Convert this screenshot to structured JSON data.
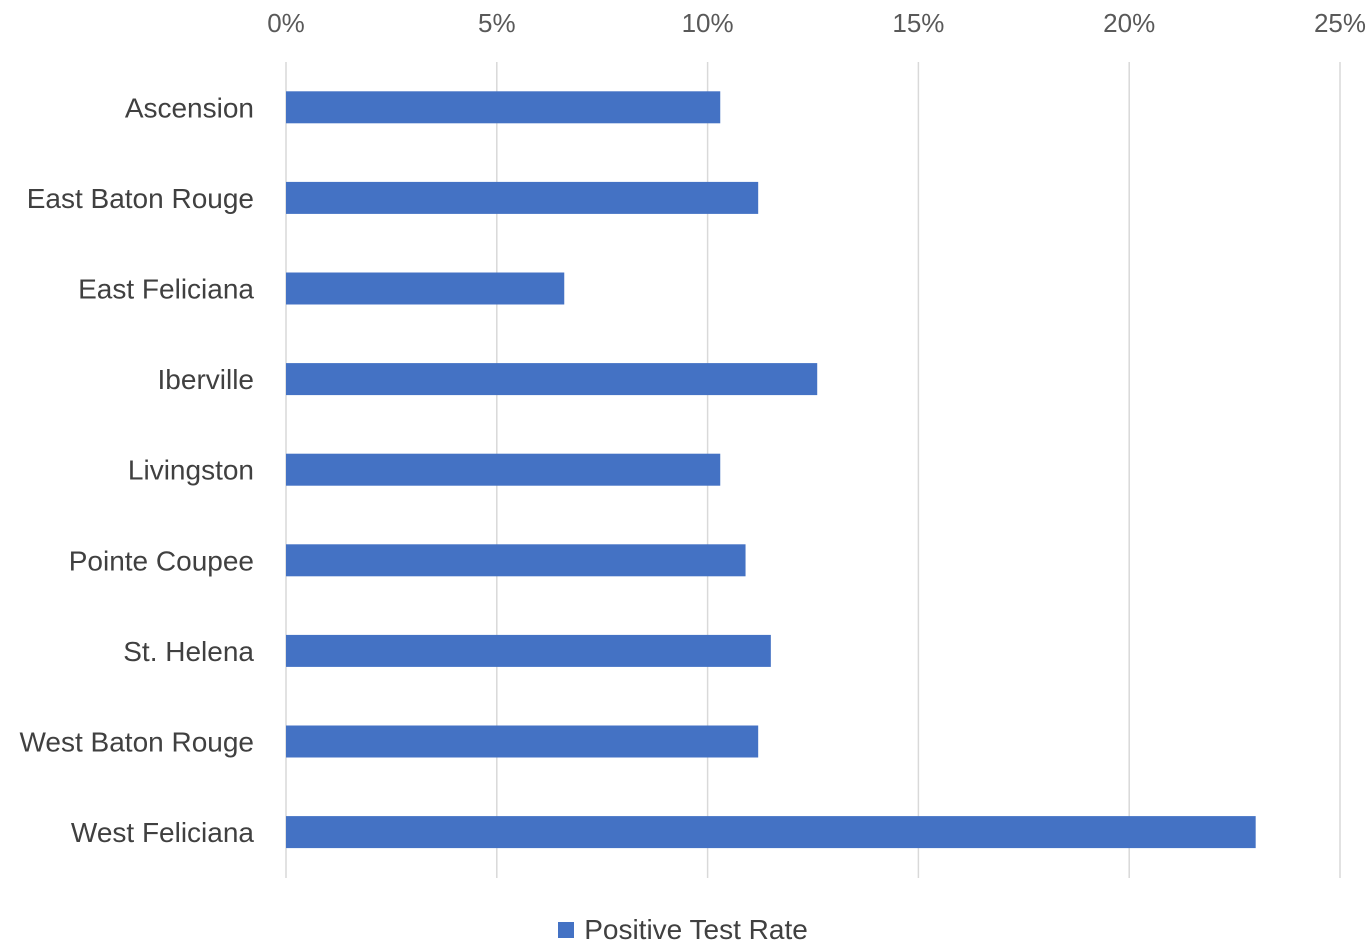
{
  "chart_data": {
    "type": "bar",
    "orientation": "horizontal",
    "categories": [
      "Ascension",
      "East Baton Rouge",
      "East Feliciana",
      "Iberville",
      "Livingston",
      "Pointe Coupee",
      "St. Helena",
      "West Baton Rouge",
      "West Feliciana"
    ],
    "series": [
      {
        "name": "Positive Test Rate",
        "color": "#4472c4",
        "values": [
          0.103,
          0.112,
          0.066,
          0.126,
          0.103,
          0.109,
          0.115,
          0.112,
          0.23
        ]
      }
    ],
    "xlim": [
      0,
      0.25
    ],
    "xticks": [
      0,
      0.05,
      0.1,
      0.15,
      0.2,
      0.25
    ],
    "xtick_labels": [
      "0%",
      "5%",
      "10%",
      "15%",
      "20%",
      "25%"
    ],
    "x_axis_position": "top",
    "grid": true,
    "legend_position": "bottom"
  }
}
